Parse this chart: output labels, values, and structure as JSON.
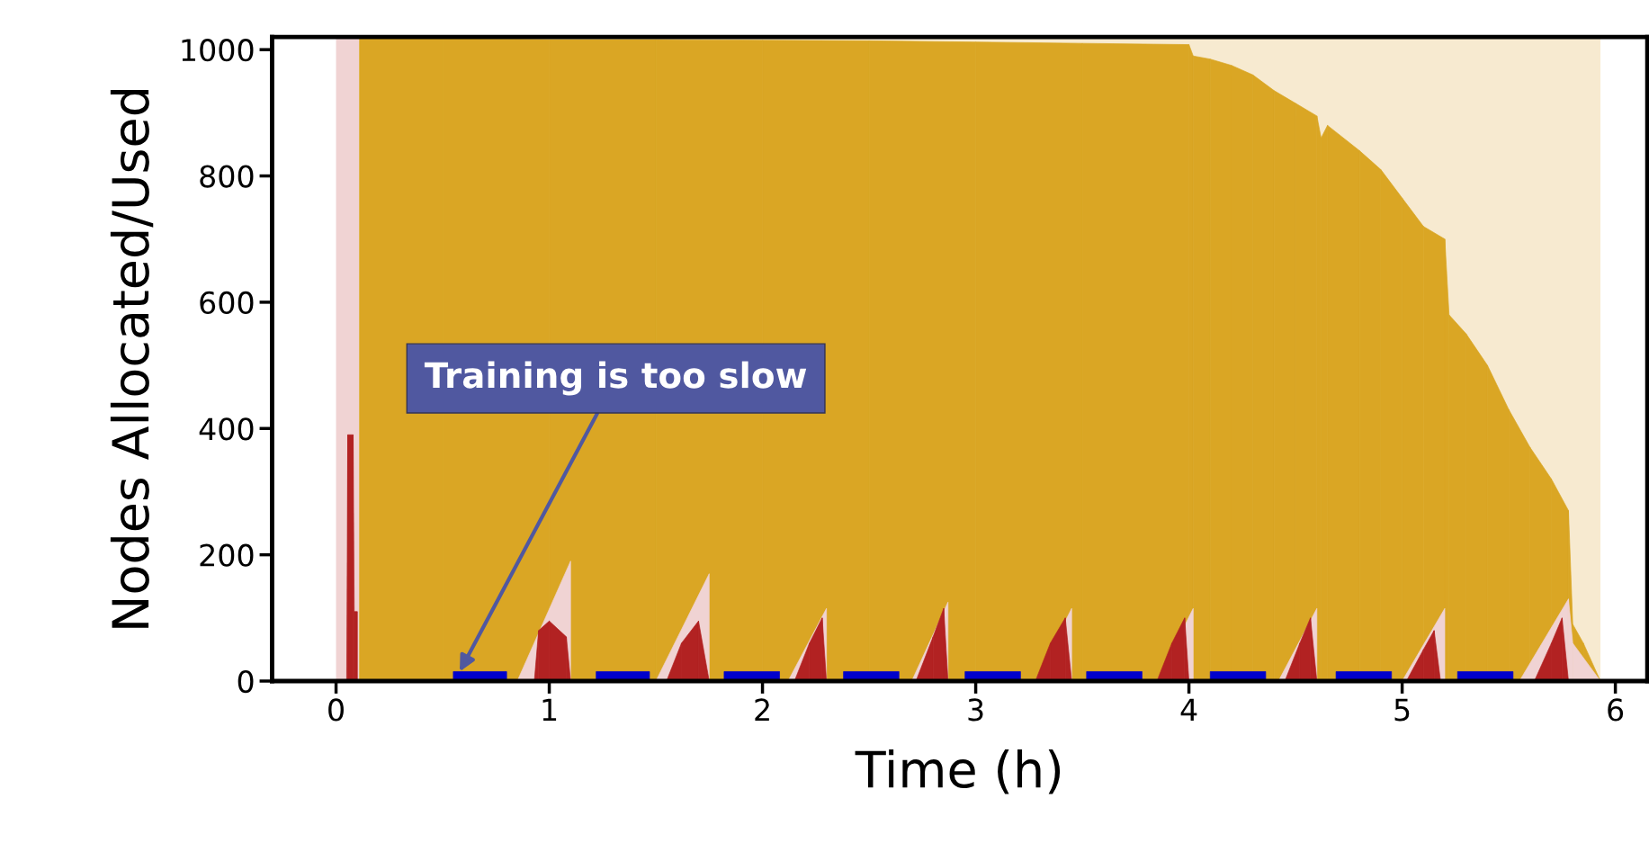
{
  "chart_data": {
    "type": "area",
    "xlabel": "Time (h)",
    "ylabel": "Nodes Allocated/Used",
    "xlim": [
      -0.3,
      6.15
    ],
    "ylim": [
      0,
      1020
    ],
    "xticks": [
      0,
      1,
      2,
      3,
      4,
      5,
      6
    ],
    "yticks": [
      0,
      200,
      400,
      600,
      800,
      1000
    ],
    "grid": false,
    "legend": false,
    "bands": [
      {
        "axis": "x",
        "from": 0,
        "to": 0.11,
        "color": "#f0d3d3"
      },
      {
        "axis": "x",
        "from": 0.11,
        "to": 5.93,
        "color": "#f7ead0"
      }
    ],
    "series": [
      {
        "color": "#daa624",
        "x": [
          0.11,
          0.5,
          1.0,
          1.5,
          2.0,
          2.5,
          3.0,
          3.5,
          4.0,
          4.02,
          4.1,
          4.2,
          4.3,
          4.4,
          4.5,
          4.6,
          4.62,
          4.65,
          4.8,
          4.9,
          5.0,
          5.1,
          5.2,
          5.22,
          5.3,
          5.4,
          5.5,
          5.6,
          5.7,
          5.78,
          5.8,
          5.85,
          5.93
        ],
        "values": [
          1020,
          1018,
          1016,
          1016,
          1015,
          1014,
          1012,
          1010,
          1008,
          990,
          985,
          975,
          960,
          935,
          915,
          895,
          860,
          880,
          840,
          810,
          765,
          720,
          700,
          580,
          550,
          500,
          430,
          370,
          320,
          270,
          90,
          60,
          0
        ]
      },
      {
        "color": "#f0d3d3",
        "x": [
          0.85,
          1.1,
          1.105,
          1.5,
          1.75,
          1.755,
          2.12,
          2.3,
          2.305,
          2.7,
          2.87,
          2.875,
          3.28,
          3.45,
          3.455,
          3.85,
          4.02,
          4.025,
          4.42,
          4.6,
          4.605,
          5.0,
          5.2,
          5.205,
          5.55,
          5.78,
          5.8,
          5.93
        ],
        "values": [
          0,
          190,
          null,
          0,
          170,
          null,
          0,
          115,
          null,
          0,
          125,
          null,
          0,
          115,
          null,
          0,
          115,
          null,
          0,
          115,
          null,
          0,
          115,
          null,
          0,
          130,
          60,
          0
        ]
      },
      {
        "color": "#b22222",
        "x": [
          0.05,
          0.055,
          0.08,
          0.085,
          0.1,
          0.105,
          0.93,
          0.95,
          1.0,
          1.08,
          1.1,
          1.105,
          1.55,
          1.62,
          1.7,
          1.75,
          1.755,
          2.15,
          2.22,
          2.28,
          2.3,
          2.305,
          2.72,
          2.8,
          2.85,
          2.87,
          2.875,
          3.28,
          3.35,
          3.42,
          3.45,
          3.455,
          3.85,
          3.92,
          3.98,
          4.0,
          4.005,
          4.45,
          4.52,
          4.57,
          4.6,
          4.605,
          5.02,
          5.1,
          5.15,
          5.18,
          5.185,
          5.62,
          5.7,
          5.75,
          5.78
        ],
        "values": [
          0,
          390,
          390,
          110,
          110,
          null,
          0,
          80,
          95,
          70,
          0,
          null,
          0,
          60,
          95,
          0,
          null,
          0,
          60,
          100,
          0,
          null,
          0,
          70,
          115,
          0,
          null,
          0,
          60,
          100,
          0,
          null,
          0,
          60,
          100,
          0,
          null,
          0,
          60,
          100,
          0,
          null,
          0,
          50,
          80,
          0,
          null,
          0,
          60,
          100,
          0
        ]
      },
      {
        "color": "#0000cc",
        "x": [
          0.55,
          0.8,
          0.805,
          1.22,
          1.47,
          1.475,
          1.82,
          2.08,
          2.085,
          2.38,
          2.64,
          2.645,
          2.95,
          3.21,
          3.215,
          3.52,
          3.78,
          3.785,
          4.1,
          4.36,
          4.365,
          4.69,
          4.95,
          4.955,
          5.26,
          5.52
        ],
        "values": [
          15,
          15,
          null,
          15,
          15,
          null,
          15,
          15,
          null,
          15,
          15,
          null,
          15,
          15,
          null,
          15,
          15,
          null,
          15,
          15,
          null,
          15,
          15,
          null,
          15,
          15
        ]
      }
    ],
    "annotations": [
      {
        "text": "Training is too slow",
        "x": 0.58,
        "y": 15
      }
    ]
  }
}
